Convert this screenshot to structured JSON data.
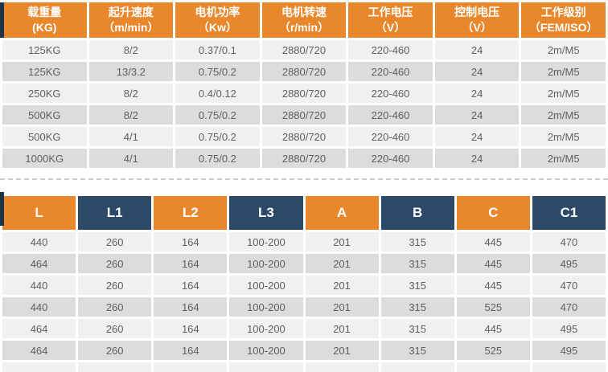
{
  "colors": {
    "orange": "#e8872b",
    "navy": "#2c4a68",
    "row_light": "#f0f0f0",
    "row_gray": "#dcdcdc",
    "text_gray": "#5e5f61",
    "header_text": "#ffffff",
    "divider": "#cccccc",
    "edge_stripe": "#1d3349"
  },
  "spec_table": {
    "columns": [
      {
        "title": "载重量",
        "unit": "(KG)"
      },
      {
        "title": "起升速度",
        "unit": "（m/min）"
      },
      {
        "title": "电机功率",
        "unit": "（Kw）"
      },
      {
        "title": "电机转速",
        "unit": "（r/min）"
      },
      {
        "title": "工作电压",
        "unit": "（V）"
      },
      {
        "title": "控制电压",
        "unit": "（V）"
      },
      {
        "title": "工作级别",
        "unit": "（FEM/ISO）"
      }
    ],
    "rows": [
      [
        "125KG",
        "8/2",
        "0.37/0.1",
        "2880/720",
        "220-460",
        "24",
        "2m/M5"
      ],
      [
        "125KG",
        "13/3.2",
        "0.75/0.2",
        "2880/720",
        "220-460",
        "24",
        "2m/M5"
      ],
      [
        "250KG",
        "8/2",
        "0.4/0.12",
        "2880/720",
        "220-460",
        "24",
        "2m/M5"
      ],
      [
        "500KG",
        "8/2",
        "0.75/0.2",
        "2880/720",
        "220-460",
        "24",
        "2m/M5"
      ],
      [
        "500KG",
        "4/1",
        "0.75/0.2",
        "2880/720",
        "220-460",
        "24",
        "2m/M5"
      ],
      [
        "1000KG",
        "4/1",
        "0.75/0.2",
        "2880/720",
        "220-460",
        "24",
        "2m/M5"
      ]
    ]
  },
  "dimension_table": {
    "columns": [
      "L",
      "L1",
      "L2",
      "L3",
      "A",
      "B",
      "C",
      "C1"
    ],
    "rows": [
      [
        "440",
        "260",
        "164",
        "100-200",
        "201",
        "315",
        "445",
        "470"
      ],
      [
        "464",
        "260",
        "164",
        "100-200",
        "201",
        "315",
        "445",
        "495"
      ],
      [
        "440",
        "260",
        "164",
        "100-200",
        "201",
        "315",
        "445",
        "470"
      ],
      [
        "440",
        "260",
        "164",
        "100-200",
        "201",
        "315",
        "525",
        "470"
      ],
      [
        "464",
        "260",
        "164",
        "100-200",
        "201",
        "315",
        "445",
        "495"
      ],
      [
        "464",
        "260",
        "164",
        "100-200",
        "201",
        "315",
        "525",
        "495"
      ]
    ]
  }
}
